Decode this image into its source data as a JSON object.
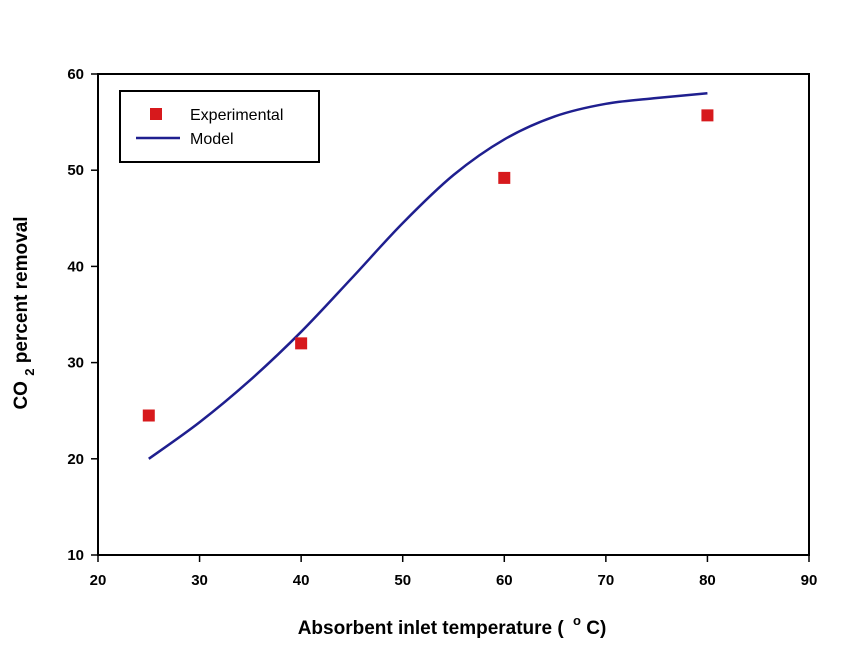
{
  "chart_data": {
    "type": "scatter",
    "title": "",
    "xlabel": {
      "main": "Absorbent inlet temperature (",
      "superscript": "o",
      "unit": "C)"
    },
    "ylabel": {
      "prefix": "CO",
      "subscript": "2",
      "suffix": " percent removal"
    },
    "xlim": [
      20,
      90
    ],
    "ylim": [
      10,
      60
    ],
    "xticks": [
      20,
      30,
      40,
      50,
      60,
      70,
      80,
      90
    ],
    "yticks": [
      10,
      20,
      30,
      40,
      50,
      60
    ],
    "grid": false,
    "legend_position": "top-left",
    "series": [
      {
        "name": "Experimental",
        "kind": "markers",
        "marker": "square",
        "color": "#d7191c",
        "x": [
          25,
          40,
          60,
          80
        ],
        "y": [
          24.5,
          32,
          49.2,
          55.7
        ]
      },
      {
        "name": "Model",
        "kind": "line",
        "color": "#1f1f8f",
        "x": [
          25,
          30,
          35,
          40,
          45,
          50,
          55,
          60,
          65,
          70,
          75,
          80
        ],
        "y": [
          20,
          23.8,
          28.2,
          33.2,
          38.8,
          44.5,
          49.5,
          53.2,
          55.6,
          56.9,
          57.5,
          58
        ]
      }
    ]
  }
}
